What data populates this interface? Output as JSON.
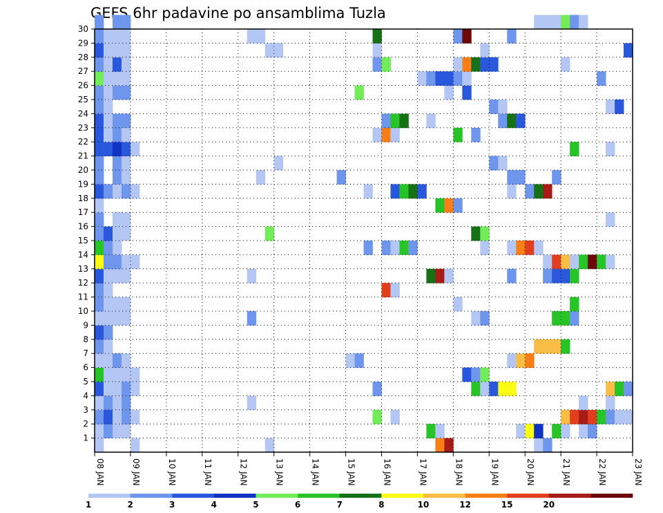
{
  "chart_data": {
    "type": "heatmap",
    "title": "GEFS 6hr padavine po ansamblima Tuzla",
    "x_tick_labels": [
      "08 JAN",
      "09 JAN",
      "10 JAN",
      "11 JAN",
      "12 JAN",
      "13 JAN",
      "14 JAN",
      "15 JAN",
      "16 JAN",
      "17 JAN",
      "18 JAN",
      "19 JAN",
      "20 JAN",
      "21 JAN",
      "22 JAN",
      "23 JAN"
    ],
    "y_tick_labels": [
      1,
      2,
      3,
      4,
      5,
      6,
      7,
      8,
      9,
      10,
      11,
      12,
      13,
      14,
      15,
      16,
      17,
      18,
      19,
      20,
      21,
      22,
      23,
      24,
      25,
      26,
      27,
      28,
      29,
      30
    ],
    "x_unit": "6-hour steps from 08 JAN 00Z",
    "xlim": [
      0,
      60
    ],
    "ylim": [
      0,
      30
    ],
    "grid": true,
    "colorbar": {
      "labels": [
        "1",
        "2",
        "3",
        "4",
        "5",
        "6",
        "7",
        "8",
        "10",
        "12",
        "15",
        "20"
      ],
      "colors": [
        "#b4c7f4",
        "#6e96ec",
        "#2a58dc",
        "#1133c4",
        "#73ec5a",
        "#27c427",
        "#167116",
        "#fcfc14",
        "#fcbd46",
        "#f87e16",
        "#e23e1e",
        "#a81c18",
        "#6e0808"
      ]
    },
    "rows": [
      {
        "member": 0,
        "cells": [
          [
            0,
            0
          ],
          [
            4,
            0
          ],
          [
            19,
            0
          ],
          [
            38,
            9
          ],
          [
            39,
            11
          ],
          [
            49,
            0
          ],
          [
            50,
            1
          ]
        ]
      },
      {
        "member": 1,
        "cells": [
          [
            0,
            0
          ],
          [
            1,
            1
          ],
          [
            2,
            0
          ],
          [
            3,
            0
          ],
          [
            37,
            5
          ],
          [
            38,
            0
          ],
          [
            47,
            0
          ],
          [
            48,
            7
          ],
          [
            49,
            3
          ],
          [
            51,
            5
          ],
          [
            52,
            0
          ],
          [
            54,
            0
          ],
          [
            55,
            1
          ]
        ]
      },
      {
        "member": 2,
        "cells": [
          [
            0,
            1
          ],
          [
            1,
            2
          ],
          [
            2,
            0
          ],
          [
            3,
            1
          ],
          [
            4,
            0
          ],
          [
            31,
            4
          ],
          [
            33,
            0
          ],
          [
            52,
            8
          ],
          [
            53,
            10
          ],
          [
            54,
            11
          ],
          [
            55,
            10
          ],
          [
            56,
            5
          ],
          [
            57,
            1
          ],
          [
            58,
            0
          ],
          [
            59,
            0
          ]
        ]
      },
      {
        "member": 3,
        "cells": [
          [
            0,
            0
          ],
          [
            1,
            1
          ],
          [
            2,
            0
          ],
          [
            3,
            1
          ],
          [
            17,
            0
          ],
          [
            54,
            0
          ],
          [
            57,
            0
          ]
        ]
      },
      {
        "member": 4,
        "cells": [
          [
            0,
            2
          ],
          [
            1,
            0
          ],
          [
            2,
            0
          ],
          [
            3,
            1
          ],
          [
            4,
            0
          ],
          [
            31,
            1
          ],
          [
            42,
            5
          ],
          [
            43,
            0
          ],
          [
            44,
            2
          ],
          [
            45,
            7
          ],
          [
            46,
            7
          ],
          [
            57,
            8
          ],
          [
            58,
            5
          ],
          [
            59,
            1
          ]
        ]
      },
      {
        "member": 5,
        "cells": [
          [
            0,
            5
          ],
          [
            1,
            0
          ],
          [
            2,
            0
          ],
          [
            3,
            0
          ],
          [
            4,
            0
          ],
          [
            41,
            2
          ],
          [
            42,
            1
          ],
          [
            43,
            4
          ]
        ]
      },
      {
        "member": 6,
        "cells": [
          [
            0,
            0
          ],
          [
            1,
            0
          ],
          [
            2,
            1
          ],
          [
            3,
            0
          ],
          [
            28,
            0
          ],
          [
            29,
            1
          ],
          [
            46,
            0
          ],
          [
            47,
            8
          ],
          [
            48,
            9
          ]
        ]
      },
      {
        "member": 7,
        "cells": [
          [
            0,
            1
          ],
          [
            1,
            0
          ],
          [
            49,
            8
          ],
          [
            50,
            8
          ],
          [
            51,
            8
          ],
          [
            52,
            5
          ]
        ]
      },
      {
        "member": 8,
        "cells": [
          [
            0,
            2
          ],
          [
            1,
            1
          ]
        ]
      },
      {
        "member": 9,
        "cells": [
          [
            0,
            0
          ],
          [
            1,
            0
          ],
          [
            2,
            0
          ],
          [
            3,
            0
          ],
          [
            17,
            1
          ],
          [
            42,
            0
          ],
          [
            43,
            1
          ],
          [
            51,
            5
          ],
          [
            52,
            5
          ],
          [
            53,
            1
          ]
        ]
      },
      {
        "member": 10,
        "cells": [
          [
            0,
            1
          ],
          [
            1,
            0
          ],
          [
            2,
            0
          ],
          [
            3,
            0
          ],
          [
            40,
            0
          ],
          [
            53,
            5
          ]
        ]
      },
      {
        "member": 11,
        "cells": [
          [
            0,
            1
          ],
          [
            1,
            0
          ],
          [
            32,
            10
          ],
          [
            33,
            0
          ]
        ]
      },
      {
        "member": 12,
        "cells": [
          [
            0,
            2
          ],
          [
            1,
            0
          ],
          [
            2,
            0
          ],
          [
            3,
            0
          ],
          [
            17,
            0
          ],
          [
            37,
            6
          ],
          [
            38,
            11
          ],
          [
            39,
            0
          ],
          [
            46,
            1
          ],
          [
            50,
            1
          ],
          [
            51,
            2
          ],
          [
            52,
            2
          ],
          [
            53,
            5
          ]
        ]
      },
      {
        "member": 13,
        "cells": [
          [
            0,
            7
          ],
          [
            1,
            1
          ],
          [
            2,
            1
          ],
          [
            3,
            0
          ],
          [
            4,
            0
          ],
          [
            50,
            0
          ],
          [
            51,
            10
          ],
          [
            52,
            8
          ],
          [
            53,
            0
          ],
          [
            54,
            5
          ],
          [
            55,
            12
          ],
          [
            56,
            5
          ],
          [
            57,
            0
          ]
        ]
      },
      {
        "member": 14,
        "cells": [
          [
            0,
            5
          ],
          [
            1,
            1
          ],
          [
            2,
            0
          ],
          [
            30,
            1
          ],
          [
            32,
            1
          ],
          [
            33,
            0
          ],
          [
            34,
            5
          ],
          [
            35,
            1
          ],
          [
            43,
            0
          ],
          [
            46,
            0
          ],
          [
            47,
            9
          ],
          [
            48,
            10
          ],
          [
            49,
            0
          ]
        ]
      },
      {
        "member": 15,
        "cells": [
          [
            0,
            1
          ],
          [
            1,
            2
          ],
          [
            2,
            0
          ],
          [
            3,
            0
          ],
          [
            19,
            4
          ],
          [
            42,
            6
          ],
          [
            43,
            4
          ]
        ]
      },
      {
        "member": 16,
        "cells": [
          [
            0,
            1
          ],
          [
            2,
            0
          ],
          [
            3,
            0
          ],
          [
            57,
            0
          ]
        ]
      },
      {
        "member": 17,
        "cells": [
          [
            0,
            0
          ],
          [
            38,
            5
          ],
          [
            39,
            9
          ],
          [
            40,
            1
          ]
        ]
      },
      {
        "member": 18,
        "cells": [
          [
            0,
            2
          ],
          [
            1,
            1
          ],
          [
            2,
            0
          ],
          [
            3,
            1
          ],
          [
            4,
            0
          ],
          [
            30,
            0
          ],
          [
            33,
            2
          ],
          [
            34,
            5
          ],
          [
            35,
            6
          ],
          [
            36,
            2
          ],
          [
            46,
            0
          ],
          [
            48,
            1
          ],
          [
            49,
            6
          ],
          [
            50,
            11
          ]
        ]
      },
      {
        "member": 19,
        "cells": [
          [
            0,
            1
          ],
          [
            2,
            1
          ],
          [
            3,
            0
          ],
          [
            18,
            0
          ],
          [
            27,
            1
          ],
          [
            46,
            1
          ],
          [
            47,
            1
          ],
          [
            51,
            1
          ]
        ]
      },
      {
        "member": 20,
        "cells": [
          [
            0,
            1
          ],
          [
            2,
            1
          ],
          [
            3,
            0
          ],
          [
            20,
            0
          ],
          [
            44,
            1
          ],
          [
            45,
            0
          ]
        ]
      },
      {
        "member": 21,
        "cells": [
          [
            0,
            2
          ],
          [
            1,
            2
          ],
          [
            2,
            3
          ],
          [
            3,
            2
          ],
          [
            4,
            0
          ],
          [
            53,
            5
          ],
          [
            57,
            0
          ]
        ]
      },
      {
        "member": 22,
        "cells": [
          [
            0,
            2
          ],
          [
            1,
            0
          ],
          [
            2,
            1
          ],
          [
            3,
            0
          ],
          [
            31,
            0
          ],
          [
            32,
            9
          ],
          [
            33,
            0
          ],
          [
            40,
            5
          ],
          [
            42,
            1
          ]
        ]
      },
      {
        "member": 23,
        "cells": [
          [
            0,
            2
          ],
          [
            1,
            0
          ],
          [
            2,
            1
          ],
          [
            3,
            1
          ],
          [
            32,
            1
          ],
          [
            33,
            5
          ],
          [
            34,
            6
          ],
          [
            37,
            0
          ],
          [
            45,
            1
          ],
          [
            46,
            6
          ],
          [
            47,
            2
          ]
        ]
      },
      {
        "member": 24,
        "cells": [
          [
            0,
            1
          ],
          [
            1,
            0
          ],
          [
            44,
            1
          ],
          [
            45,
            0
          ],
          [
            57,
            0
          ],
          [
            58,
            2
          ]
        ]
      },
      {
        "member": 25,
        "cells": [
          [
            0,
            1
          ],
          [
            1,
            0
          ],
          [
            2,
            1
          ],
          [
            3,
            1
          ],
          [
            29,
            4
          ],
          [
            39,
            0
          ],
          [
            41,
            2
          ]
        ]
      },
      {
        "member": 26,
        "cells": [
          [
            0,
            4
          ],
          [
            1,
            0
          ],
          [
            2,
            0
          ],
          [
            3,
            0
          ],
          [
            36,
            0
          ],
          [
            37,
            1
          ],
          [
            38,
            2
          ],
          [
            39,
            2
          ],
          [
            40,
            1
          ],
          [
            41,
            0
          ],
          [
            56,
            1
          ]
        ]
      },
      {
        "member": 27,
        "cells": [
          [
            0,
            1
          ],
          [
            1,
            0
          ],
          [
            2,
            2
          ],
          [
            3,
            0
          ],
          [
            31,
            1
          ],
          [
            32,
            4
          ],
          [
            40,
            0
          ],
          [
            41,
            9
          ],
          [
            42,
            6
          ],
          [
            43,
            2
          ],
          [
            44,
            2
          ],
          [
            52,
            0
          ]
        ]
      },
      {
        "member": 28,
        "cells": [
          [
            0,
            2
          ],
          [
            1,
            0
          ],
          [
            2,
            0
          ],
          [
            3,
            0
          ],
          [
            19,
            0
          ],
          [
            20,
            0
          ],
          [
            31,
            0
          ],
          [
            43,
            0
          ],
          [
            59,
            2
          ]
        ]
      },
      {
        "member": 29,
        "cells": [
          [
            0,
            1
          ],
          [
            1,
            0
          ],
          [
            2,
            0
          ],
          [
            3,
            0
          ],
          [
            17,
            0
          ],
          [
            18,
            0
          ],
          [
            31,
            6
          ],
          [
            40,
            1
          ],
          [
            41,
            12
          ],
          [
            46,
            1
          ]
        ]
      },
      {
        "member": 30,
        "cells": [
          [
            0,
            1
          ],
          [
            2,
            1
          ],
          [
            3,
            1
          ],
          [
            49,
            0
          ],
          [
            50,
            0
          ],
          [
            51,
            0
          ],
          [
            52,
            4
          ],
          [
            53,
            1
          ],
          [
            54,
            0
          ]
        ]
      }
    ]
  }
}
